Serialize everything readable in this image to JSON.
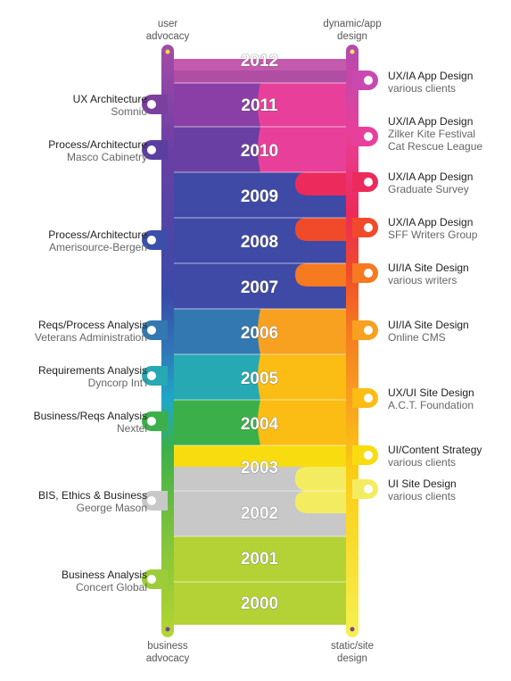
{
  "axis": {
    "top_left": [
      "user",
      "advocacy"
    ],
    "top_right": [
      "dynamic/app",
      "design"
    ],
    "bottom_left": [
      "business",
      "advocacy"
    ],
    "bottom_right": [
      "static/site",
      "design"
    ]
  },
  "years": [
    "2012",
    "2011",
    "2010",
    "2009",
    "2008",
    "2007",
    "2006",
    "2005",
    "2004",
    "2003",
    "2002",
    "2001",
    "2000"
  ],
  "left_items": [
    {
      "title": "UX Architecture",
      "sub": "Somnio",
      "color": "#7b3f9e"
    },
    {
      "title": "Process/Architecture",
      "sub": "Masco Cabinetry",
      "color": "#5b3fa0"
    },
    {
      "title": "Process/Architecture",
      "sub": "Amerisource-Bergen",
      "color": "#3b4fa8"
    },
    {
      "title": "Reqs/Process Analysis",
      "sub": "Veterans Administration",
      "color": "#3378b0"
    },
    {
      "title": "Requirements Analysis",
      "sub": "Dyncorp Int'l",
      "color": "#26a9b3"
    },
    {
      "title": "Business/Reqs Analysis",
      "sub": "Nextel",
      "color": "#3bb04a"
    },
    {
      "title": "BIS, Ethics & Business",
      "sub": "George Mason",
      "color": "#c8c8c8"
    },
    {
      "title": "Business Analysis",
      "sub": "Concert Global",
      "color": "#9ccc3a"
    }
  ],
  "right_items": [
    {
      "title": "UX/IA App Design",
      "sub": "various clients",
      "color": "#c84ab0"
    },
    {
      "title": "UX/IA App Design",
      "sub": "Zilker Kite Festival",
      "sub2": "Cat Rescue League",
      "color": "#e8409a"
    },
    {
      "title": "UX/IA App Design",
      "sub": "Graduate Survey",
      "color": "#ec2a5c"
    },
    {
      "title": "UX/IA App Design",
      "sub": "SFF Writers Group",
      "color": "#f04a2a"
    },
    {
      "title": "UI/IA Site Design",
      "sub": "various writers",
      "color": "#f57a20"
    },
    {
      "title": "UI/IA Site Design",
      "sub": "Online CMS",
      "color": "#f8a020"
    },
    {
      "title": "UX/UI Site Design",
      "sub": "A.C.T. Foundation",
      "color": "#fbbc14"
    },
    {
      "title": "UI/Content Strategy",
      "sub": "various clients",
      "color": "#f8dc10"
    },
    {
      "title": "UI Site Design",
      "sub": "various clients",
      "color": "#f4ec60"
    }
  ]
}
